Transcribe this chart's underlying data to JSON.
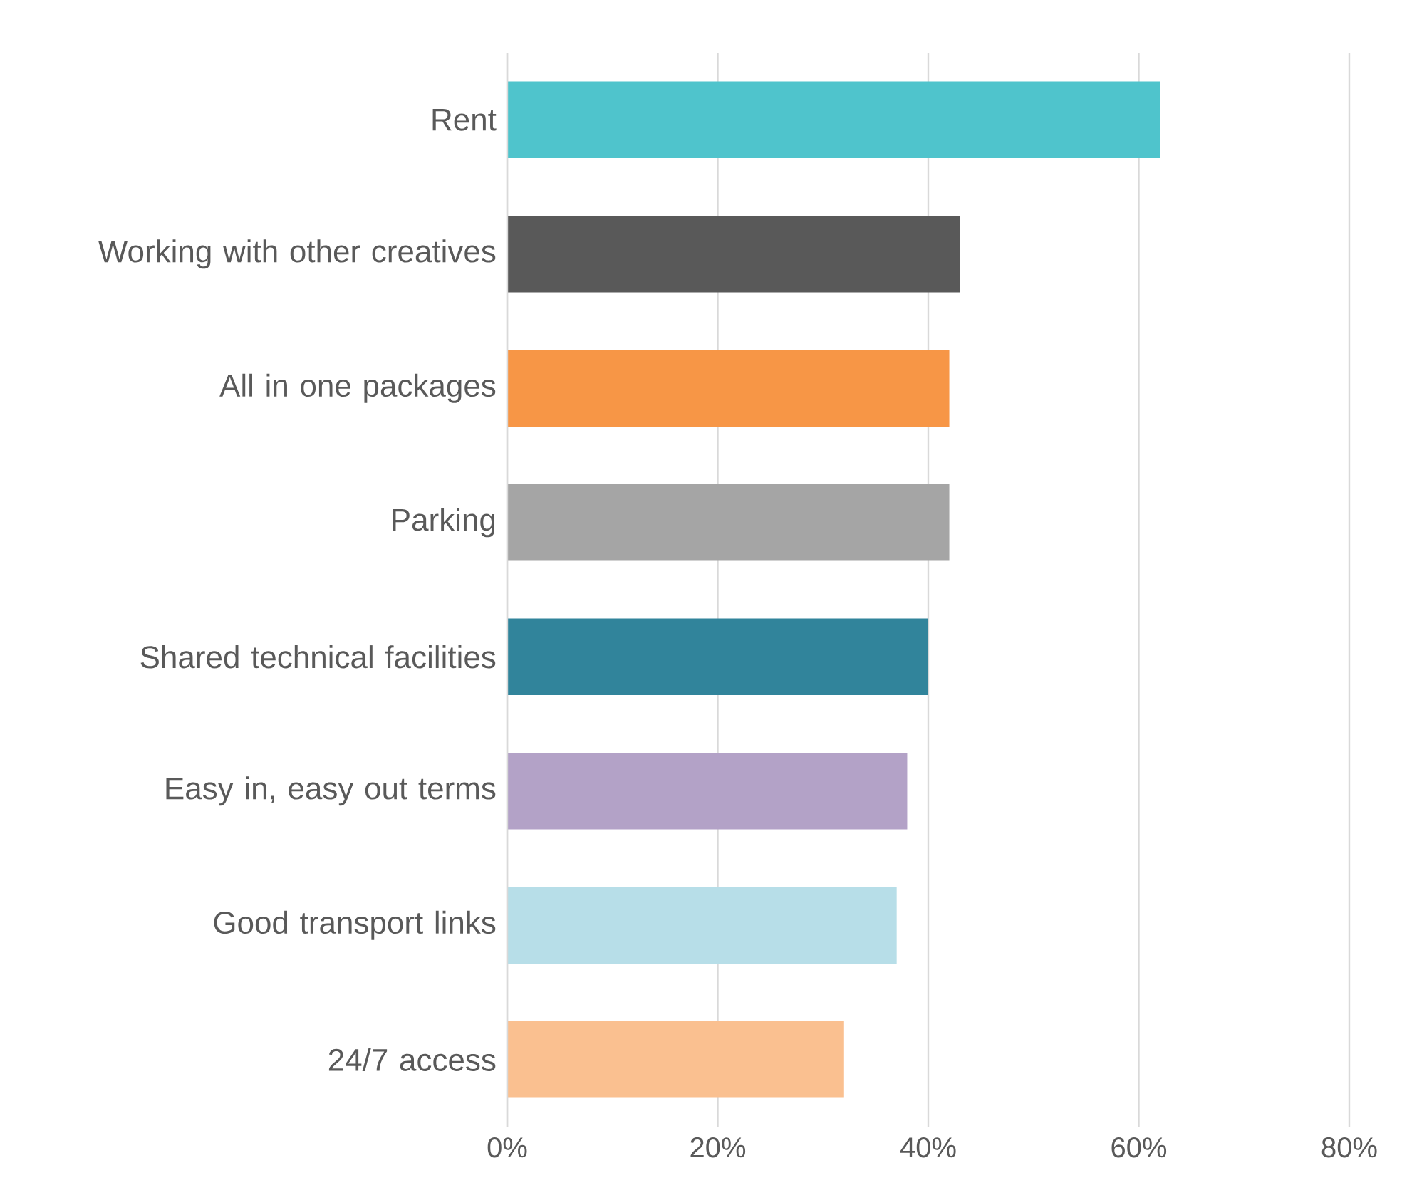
{
  "chart_data": {
    "type": "bar",
    "orientation": "horizontal",
    "categories": [
      "Rent",
      "Working with other creatives",
      "All in one packages",
      "Parking",
      "Shared technical facilities",
      "Easy in, easy out terms",
      "Good transport links",
      "24/7 access"
    ],
    "values": [
      62,
      43,
      42,
      42,
      40,
      38,
      37,
      32
    ],
    "colors": [
      "#4fc4cc",
      "#595959",
      "#f79646",
      "#a5a5a5",
      "#31849b",
      "#b3a2c7",
      "#b7dee8",
      "#fac090"
    ],
    "xlim": [
      0,
      80
    ],
    "xticks": [
      {
        "value": 0,
        "label": "0%"
      },
      {
        "value": 20,
        "label": "20%"
      },
      {
        "value": 40,
        "label": "40%"
      },
      {
        "value": 60,
        "label": "60%"
      },
      {
        "value": 80,
        "label": "80%"
      }
    ],
    "grid": "x"
  }
}
